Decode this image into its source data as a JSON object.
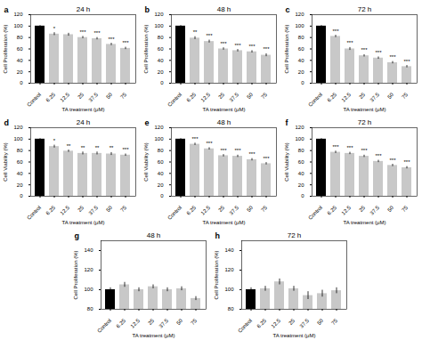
{
  "chart_data": [
    {
      "type": "bar",
      "panel_label": "a",
      "title": "24 h",
      "xlabel": "TA treatment (μM)",
      "ylabel": "Cell Proliferation (%)",
      "categories": [
        "Control",
        "6.25",
        "12.5",
        "25",
        "37.5",
        "50",
        "75"
      ],
      "values": [
        100,
        86,
        85,
        80,
        78,
        68,
        61
      ],
      "errors": [
        1,
        2.5,
        2.5,
        2,
        2,
        2,
        2
      ],
      "sig": [
        null,
        "*",
        null,
        "***",
        "***",
        "***",
        "***"
      ],
      "colors": [
        "#000000",
        "#C8C8C8",
        "#C8C8C8",
        "#C8C8C8",
        "#C8C8C8",
        "#C8C8C8",
        "#C8C8C8"
      ],
      "ylim": [
        0,
        120
      ],
      "yticks": [
        0,
        20,
        40,
        60,
        80,
        100,
        120
      ]
    },
    {
      "type": "bar",
      "panel_label": "b",
      "title": "48 h",
      "xlabel": "TA treatment (μM)",
      "ylabel": "Cell Proliferation (%)",
      "categories": [
        "Control",
        "6.25",
        "12.5",
        "25",
        "37.5",
        "50",
        "75"
      ],
      "values": [
        100,
        79,
        73,
        60,
        57,
        55,
        49
      ],
      "errors": [
        1,
        2.5,
        2.5,
        2,
        2,
        2,
        2.5
      ],
      "sig": [
        null,
        "**",
        "***",
        "***",
        "***",
        "***",
        "***"
      ],
      "colors": [
        "#000000",
        "#C8C8C8",
        "#C8C8C8",
        "#C8C8C8",
        "#C8C8C8",
        "#C8C8C8",
        "#C8C8C8"
      ],
      "ylim": [
        0,
        120
      ],
      "yticks": [
        0,
        20,
        40,
        60,
        80,
        100,
        120
      ]
    },
    {
      "type": "bar",
      "panel_label": "c",
      "title": "72 h",
      "xlabel": "TA treatment (μM)",
      "ylabel": "Cell Proliferation (%)",
      "categories": [
        "Control",
        "6.25",
        "12.5",
        "25",
        "37.5",
        "50",
        "75"
      ],
      "values": [
        100,
        82,
        60,
        48,
        44,
        36,
        29
      ],
      "errors": [
        1,
        2,
        2.5,
        2,
        2,
        2,
        2
      ],
      "sig": [
        null,
        "***",
        "***",
        "***",
        "***",
        "***",
        "***"
      ],
      "colors": [
        "#000000",
        "#C8C8C8",
        "#C8C8C8",
        "#C8C8C8",
        "#C8C8C8",
        "#C8C8C8",
        "#C8C8C8"
      ],
      "ylim": [
        0,
        120
      ],
      "yticks": [
        0,
        20,
        40,
        60,
        80,
        100,
        120
      ]
    },
    {
      "type": "bar",
      "panel_label": "d",
      "title": "24 h",
      "xlabel": "TA treatment (μM)",
      "ylabel": "Cell Viability (%)",
      "categories": [
        "Control",
        "6.25",
        "12.5",
        "25",
        "37.5",
        "50",
        "75"
      ],
      "values": [
        100,
        87,
        79,
        75,
        75,
        74,
        72
      ],
      "errors": [
        1,
        2.5,
        2,
        2.5,
        2.5,
        2.5,
        2
      ],
      "sig": [
        null,
        "*",
        "**",
        "**",
        "**",
        "**",
        "***"
      ],
      "colors": [
        "#000000",
        "#C8C8C8",
        "#C8C8C8",
        "#C8C8C8",
        "#C8C8C8",
        "#C8C8C8",
        "#C8C8C8"
      ],
      "ylim": [
        0,
        120
      ],
      "yticks": [
        0,
        20,
        40,
        60,
        80,
        100,
        120
      ]
    },
    {
      "type": "bar",
      "panel_label": "e",
      "title": "48 h",
      "xlabel": "TA treatment (μM)",
      "ylabel": "Cell Viability (%)",
      "categories": [
        "Control",
        "6.25",
        "12.5",
        "25",
        "37.5",
        "50",
        "75"
      ],
      "values": [
        100,
        91,
        83,
        71,
        70,
        64,
        57
      ],
      "errors": [
        1,
        2,
        2,
        2,
        2,
        2,
        2
      ],
      "sig": [
        null,
        "***",
        "***",
        "***",
        "***",
        "***",
        "***"
      ],
      "colors": [
        "#000000",
        "#C8C8C8",
        "#C8C8C8",
        "#C8C8C8",
        "#C8C8C8",
        "#C8C8C8",
        "#C8C8C8"
      ],
      "ylim": [
        0,
        120
      ],
      "yticks": [
        0,
        20,
        40,
        60,
        80,
        100,
        120
      ]
    },
    {
      "type": "bar",
      "panel_label": "f",
      "title": "72 h",
      "xlabel": "TA treatment (μM)",
      "ylabel": "Cell Viability (%)",
      "categories": [
        "Control",
        "6.25",
        "12.5",
        "25",
        "37.5",
        "50",
        "75"
      ],
      "values": [
        100,
        77,
        75,
        70,
        61,
        54,
        50
      ],
      "errors": [
        1,
        2,
        2,
        2,
        2,
        2,
        2
      ],
      "sig": [
        null,
        "***",
        "***",
        "***",
        "***",
        "***",
        "***"
      ],
      "colors": [
        "#000000",
        "#C8C8C8",
        "#C8C8C8",
        "#C8C8C8",
        "#C8C8C8",
        "#C8C8C8",
        "#C8C8C8"
      ],
      "ylim": [
        0,
        120
      ],
      "yticks": [
        0,
        20,
        40,
        60,
        80,
        100,
        120
      ]
    },
    {
      "type": "bar",
      "panel_label": "g",
      "title": "48 h",
      "xlabel": "TA treatment (μM)",
      "ylabel": "Cell Proliferation (%)",
      "categories": [
        "Control",
        "6.25",
        "12.5",
        "25",
        "37.5",
        "50",
        "75"
      ],
      "values": [
        100,
        105,
        100,
        103,
        100,
        101,
        91
      ],
      "errors": [
        2,
        2.5,
        2,
        2,
        2,
        2,
        2
      ],
      "colors": [
        "#000000",
        "#C8C8C8",
        "#C8C8C8",
        "#C8C8C8",
        "#C8C8C8",
        "#C8C8C8",
        "#C8C8C8"
      ],
      "ylim": [
        80,
        150
      ],
      "yticks": [
        80,
        100,
        120,
        140
      ]
    },
    {
      "type": "bar",
      "panel_label": "h",
      "title": "72 h",
      "xlabel": "TA treatment (μM)",
      "ylabel": "Cell Proliferation (%)",
      "categories": [
        "Control",
        "6.25",
        "12.5",
        "25",
        "37.5",
        "50",
        "75"
      ],
      "values": [
        100,
        101,
        108,
        101,
        94,
        96,
        99
      ],
      "errors": [
        2,
        2.5,
        3,
        2.5,
        4,
        3.5,
        3
      ],
      "colors": [
        "#000000",
        "#C8C8C8",
        "#C8C8C8",
        "#C8C8C8",
        "#C8C8C8",
        "#C8C8C8",
        "#C8C8C8"
      ],
      "ylim": [
        80,
        150
      ],
      "yticks": [
        80,
        100,
        120,
        140
      ]
    }
  ]
}
